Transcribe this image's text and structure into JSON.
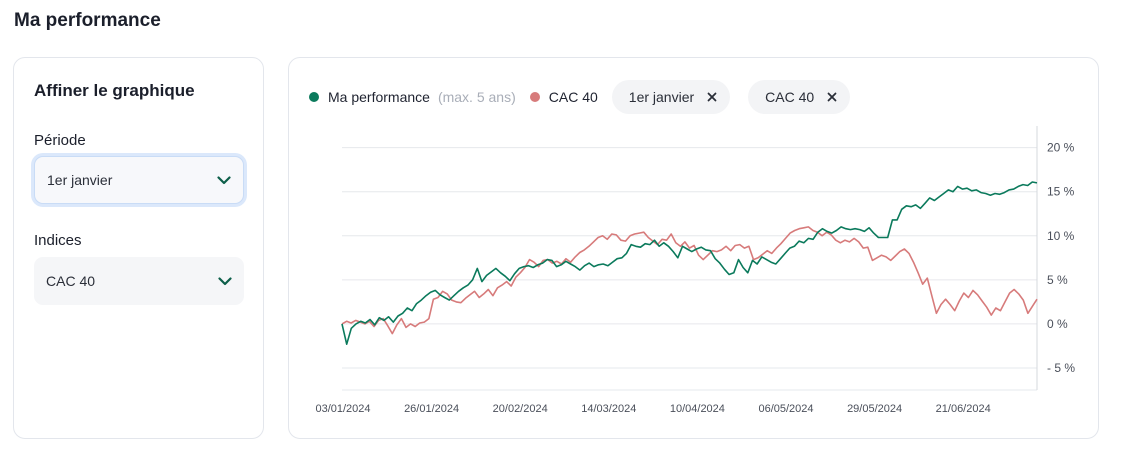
{
  "page": {
    "title": "Ma performance"
  },
  "filters": {
    "title": "Affiner le graphique",
    "periode": {
      "label": "Période",
      "value": "1er janvier"
    },
    "indices": {
      "label": "Indices",
      "value": "CAC 40"
    }
  },
  "legend": {
    "items": [
      {
        "label": "Ma performance",
        "sublabel": "(max. 5 ans)",
        "color": "#0b7a5c"
      },
      {
        "label": "CAC 40",
        "sublabel": "",
        "color": "#d77b7b"
      }
    ],
    "chips": [
      {
        "label": "1er janvier"
      },
      {
        "label": "CAC 40"
      }
    ]
  },
  "chart_data": {
    "type": "line",
    "x_ticks": [
      "03/01/2024",
      "26/01/2024",
      "20/02/2024",
      "14/03/2024",
      "10/04/2024",
      "06/05/2024",
      "29/05/2024",
      "21/06/2024"
    ],
    "y_ticks": [
      "20 %",
      "15 %",
      "10 %",
      "5 %",
      "0 %",
      "- 5 %"
    ],
    "ylim": [
      -7.5,
      22
    ],
    "y_step": 5,
    "grid": true,
    "series": [
      {
        "name": "Ma performance",
        "color": "#0b7a5c",
        "values": [
          0,
          -2.3,
          -0.5,
          0,
          0.3,
          0.1,
          0.5,
          -0.1,
          0.7,
          0.4,
          0.8,
          0.2,
          0.9,
          1.2,
          1.8,
          1.5,
          2.3,
          2.7,
          3.2,
          3.6,
          3.8,
          3.3,
          3.0,
          2.7,
          3.2,
          3.7,
          4.1,
          4.4,
          5.0,
          6.3,
          4.8,
          5.5,
          5.9,
          6.3,
          5.8,
          5.4,
          4.9,
          5.7,
          6.3,
          6.5,
          6.6,
          6.4,
          6.7,
          6.9,
          7.3,
          7.2,
          6.5,
          6.7,
          7.1,
          6.8,
          6.5,
          6.1,
          6.6,
          6.9,
          6.5,
          6.7,
          6.8,
          6.6,
          7.0,
          7.4,
          7.5,
          8.0,
          9.0,
          8.8,
          8.7,
          9.1,
          9.0,
          9.5,
          8.8,
          9.2,
          8.8,
          8.2,
          7.5,
          8.8,
          8.5,
          8.2,
          8.5,
          8.7,
          8.4,
          8.3,
          7.4,
          6.9,
          6.2,
          5.6,
          5.8,
          7.3,
          6.4,
          5.8,
          7.2,
          6.8,
          7.6,
          7.3,
          7.0,
          6.8,
          7.4,
          8.0,
          8.6,
          8.8,
          9.4,
          9.2,
          9.7,
          9.6,
          10.4,
          10.8,
          10.5,
          10.3,
          10.6,
          11.0,
          10.8,
          10.7,
          10.8,
          10.7,
          10.5,
          10.9,
          10.3,
          9.8,
          9.8,
          9.8,
          11.8,
          11.8,
          13.0,
          13.4,
          13.3,
          13.5,
          13.1,
          13.7,
          14.3,
          14.0,
          14.4,
          14.8,
          15.2,
          15.0,
          15.6,
          15.3,
          15.4,
          15.1,
          15.2,
          14.9,
          14.8,
          14.6,
          14.8,
          14.7,
          14.9,
          15.2,
          15.3,
          15.6,
          15.8,
          15.7,
          16.1,
          16.0
        ]
      },
      {
        "name": "CAC 40",
        "color": "#d77b7b",
        "values": [
          0,
          0.3,
          0.1,
          0.4,
          0.2,
          0.0,
          0.3,
          -0.3,
          0.4,
          0.6,
          -0.2,
          -1.1,
          -0.1,
          0.6,
          -0.4,
          0.0,
          -0.3,
          0.1,
          0.2,
          0.6,
          2.8,
          3.0,
          3.7,
          3.4,
          2.7,
          2.5,
          2.4,
          2.9,
          3.3,
          3.7,
          3.0,
          3.4,
          3.9,
          3.2,
          4.1,
          4.4,
          4.8,
          4.3,
          5.3,
          5.8,
          6.4,
          7.3,
          7.0,
          6.5,
          7.2,
          7.3,
          6.9,
          7.1,
          6.8,
          7.4,
          7.0,
          7.6,
          8.1,
          8.4,
          8.8,
          9.3,
          9.8,
          10.0,
          9.6,
          10.2,
          10.1,
          9.5,
          9.4,
          10.0,
          10.2,
          10.3,
          10.4,
          9.8,
          9.4,
          9.0,
          9.6,
          9.5,
          10.2,
          9.2,
          8.8,
          9.3,
          8.6,
          8.9,
          7.8,
          7.3,
          7.8,
          8.3,
          8.2,
          8.4,
          8.8,
          8.3,
          8.9,
          9.0,
          8.6,
          8.8,
          7.3,
          7.5,
          7.9,
          8.3,
          8.0,
          8.6,
          9.1,
          9.7,
          10.3,
          10.6,
          10.8,
          10.9,
          11.0,
          10.6,
          10.4,
          10.0,
          10.4,
          10.1,
          9.5,
          9.2,
          9.5,
          9.3,
          9.7,
          9.3,
          8.6,
          8.7,
          7.2,
          7.5,
          7.8,
          7.6,
          7.2,
          7.7,
          8.2,
          8.5,
          8.0,
          7.0,
          5.8,
          4.5,
          5.2,
          3.2,
          1.2,
          2.2,
          2.8,
          2.2,
          1.5,
          2.6,
          3.5,
          3.0,
          3.8,
          3.3,
          2.6,
          1.9,
          1.0,
          1.8,
          1.5,
          2.5,
          3.5,
          3.9,
          3.4,
          2.7,
          1.2,
          2.0,
          2.8
        ]
      }
    ]
  }
}
